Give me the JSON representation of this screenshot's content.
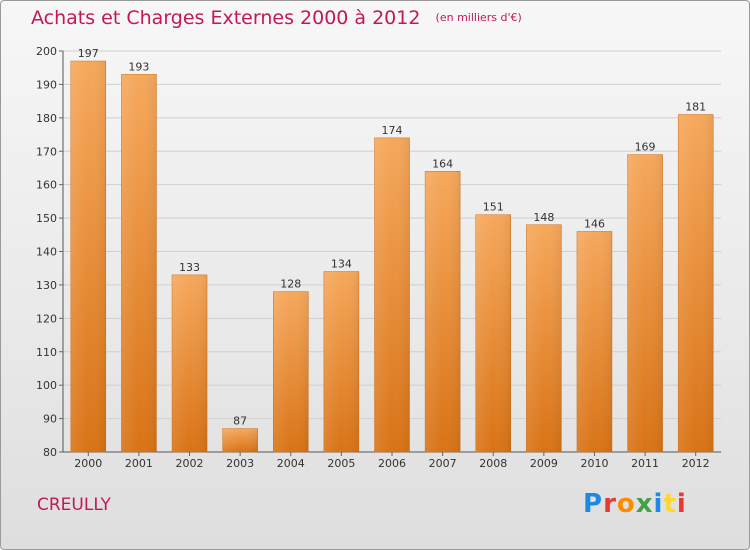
{
  "header": {
    "title": "Achats et Charges Externes 2000 à 2012",
    "subtitle": "(en milliers d'€)"
  },
  "footer": {
    "place": "CREULLY",
    "logo_text": "Proxiti",
    "logo_colors": [
      "#1e88e5",
      "#e53935",
      "#fb8c00",
      "#43a047",
      "#1e88e5",
      "#fdd835",
      "#e53935"
    ]
  },
  "colors": {
    "bar_light": "#f6a85c",
    "bar_dark": "#d97316",
    "title": "#c2185b",
    "grid": "#cfcfcf",
    "axis_text": "#333333"
  },
  "chart_data": {
    "type": "bar",
    "categories": [
      "2000",
      "2001",
      "2002",
      "2003",
      "2004",
      "2005",
      "2006",
      "2007",
      "2008",
      "2009",
      "2010",
      "2011",
      "2012"
    ],
    "values": [
      197,
      193,
      133,
      87,
      128,
      134,
      174,
      164,
      151,
      148,
      146,
      169,
      181
    ],
    "ylim": [
      80,
      200
    ],
    "yticks": [
      80,
      90,
      100,
      110,
      120,
      130,
      140,
      150,
      160,
      170,
      180,
      190,
      200
    ],
    "grid": true
  }
}
